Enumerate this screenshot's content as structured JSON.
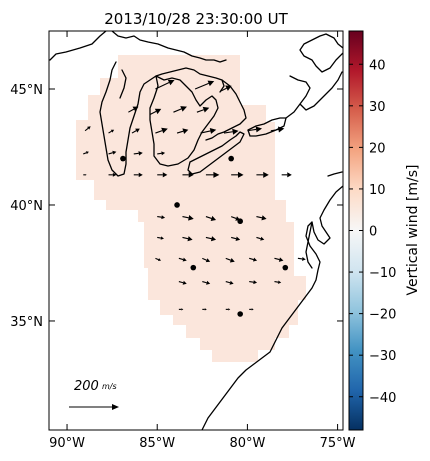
{
  "title": "2013/10/28 23:30:00 UT",
  "map": {
    "lon_range": [
      -91,
      -74.7
    ],
    "lat_range": [
      30.3,
      47.5
    ],
    "lon_ticks": [
      {
        "value": -90,
        "label": "90°W"
      },
      {
        "value": -85,
        "label": "85°W"
      },
      {
        "value": -80,
        "label": "80°W"
      },
      {
        "value": -75,
        "label": "75°W"
      }
    ],
    "lat_ticks": [
      {
        "value": 45,
        "label": "45°N"
      },
      {
        "value": 40,
        "label": "40°N"
      },
      {
        "value": 35,
        "label": "35°N"
      }
    ],
    "field_color": "#fbe6dc",
    "reference_vector": {
      "label_num": "200",
      "label_unit": "m/s",
      "magnitude": 200
    }
  },
  "colorbar": {
    "label": "Vertical wind [m/s]",
    "range": [
      -48,
      48
    ],
    "tick_values": [
      40,
      30,
      20,
      10,
      0,
      -10,
      -20,
      -30,
      -40
    ],
    "tick_labels": [
      "40",
      "30",
      "20",
      "10",
      "0",
      "−10",
      "−20",
      "−30",
      "−40"
    ],
    "color_stops": [
      "#053061",
      "#2166ac",
      "#4393c3",
      "#92c5de",
      "#d1e5f0",
      "#f7f7f7",
      "#fddbc7",
      "#f4a582",
      "#d6604d",
      "#b2182b",
      "#67001f"
    ]
  },
  "chart_data": {
    "type": "quiver",
    "title": "2013/10/28 23:30:00 UT",
    "xlabel": "",
    "ylabel": "",
    "colorbar_label": "Vertical wind [m/s]",
    "stations": [
      {
        "lon": -86.9,
        "lat": 42.0
      },
      {
        "lon": -80.9,
        "lat": 42.0
      },
      {
        "lon": -83.9,
        "lat": 40.0
      },
      {
        "lon": -80.4,
        "lat": 39.3
      },
      {
        "lon": -83.0,
        "lat": 37.3
      },
      {
        "lon": -77.9,
        "lat": 37.3
      },
      {
        "lon": -80.4,
        "lat": 35.3
      }
    ],
    "vectors": [
      {
        "lon": -85.1,
        "lat": 45.0,
        "u": 85,
        "v": 40
      },
      {
        "lon": -82.9,
        "lat": 45.0,
        "u": 85,
        "v": 35
      },
      {
        "lon": -81.5,
        "lat": 44.9,
        "u": 50,
        "v": 25
      },
      {
        "lon": -86.6,
        "lat": 44.0,
        "u": 45,
        "v": 25
      },
      {
        "lon": -85.4,
        "lat": 43.9,
        "u": 50,
        "v": 25
      },
      {
        "lon": -84.1,
        "lat": 44.0,
        "u": 60,
        "v": 25
      },
      {
        "lon": -82.8,
        "lat": 44.0,
        "u": 55,
        "v": 20
      },
      {
        "lon": -89.0,
        "lat": 43.2,
        "u": 25,
        "v": 20
      },
      {
        "lon": -87.7,
        "lat": 43.1,
        "u": 25,
        "v": 15
      },
      {
        "lon": -86.4,
        "lat": 43.1,
        "u": 35,
        "v": 20
      },
      {
        "lon": -85.1,
        "lat": 43.1,
        "u": 55,
        "v": 20
      },
      {
        "lon": -83.9,
        "lat": 43.1,
        "u": 50,
        "v": 15
      },
      {
        "lon": -82.6,
        "lat": 43.1,
        "u": 70,
        "v": 15
      },
      {
        "lon": -81.3,
        "lat": 43.1,
        "u": 65,
        "v": 10
      },
      {
        "lon": -80.0,
        "lat": 43.2,
        "u": 65,
        "v": 10
      },
      {
        "lon": -78.7,
        "lat": 43.2,
        "u": 60,
        "v": 10
      },
      {
        "lon": -89.1,
        "lat": 42.2,
        "u": 25,
        "v": 10
      },
      {
        "lon": -87.7,
        "lat": 42.2,
        "u": 35,
        "v": 10
      },
      {
        "lon": -86.3,
        "lat": 42.2,
        "u": 40,
        "v": 5
      },
      {
        "lon": -85.0,
        "lat": 42.2,
        "u": 35,
        "v": 5
      },
      {
        "lon": -89.1,
        "lat": 41.3,
        "u": 15,
        "v": 0
      },
      {
        "lon": -87.7,
        "lat": 41.3,
        "u": 35,
        "v": 0
      },
      {
        "lon": -86.3,
        "lat": 41.3,
        "u": 40,
        "v": 0
      },
      {
        "lon": -85.0,
        "lat": 41.3,
        "u": 45,
        "v": 0
      },
      {
        "lon": -83.6,
        "lat": 41.3,
        "u": 50,
        "v": 0
      },
      {
        "lon": -82.3,
        "lat": 41.3,
        "u": 60,
        "v": 0
      },
      {
        "lon": -80.9,
        "lat": 41.3,
        "u": 55,
        "v": 0
      },
      {
        "lon": -79.5,
        "lat": 41.3,
        "u": 55,
        "v": 0
      },
      {
        "lon": -78.1,
        "lat": 41.3,
        "u": 45,
        "v": 0
      },
      {
        "lon": -85.0,
        "lat": 39.5,
        "u": 35,
        "v": -5
      },
      {
        "lon": -83.6,
        "lat": 39.5,
        "u": 50,
        "v": -10
      },
      {
        "lon": -82.3,
        "lat": 39.5,
        "u": 45,
        "v": -15
      },
      {
        "lon": -80.9,
        "lat": 39.5,
        "u": 40,
        "v": -15
      },
      {
        "lon": -79.5,
        "lat": 39.5,
        "u": 45,
        "v": -10
      },
      {
        "lon": -85.0,
        "lat": 38.6,
        "u": 30,
        "v": -5
      },
      {
        "lon": -83.6,
        "lat": 38.6,
        "u": 45,
        "v": -10
      },
      {
        "lon": -82.3,
        "lat": 38.6,
        "u": 45,
        "v": -10
      },
      {
        "lon": -80.9,
        "lat": 38.6,
        "u": 40,
        "v": -10
      },
      {
        "lon": -79.5,
        "lat": 38.6,
        "u": 35,
        "v": -10
      },
      {
        "lon": -85.1,
        "lat": 37.7,
        "u": 25,
        "v": -10
      },
      {
        "lon": -83.8,
        "lat": 37.7,
        "u": 35,
        "v": -10
      },
      {
        "lon": -82.5,
        "lat": 37.7,
        "u": 35,
        "v": -15
      },
      {
        "lon": -81.2,
        "lat": 37.7,
        "u": 40,
        "v": -15
      },
      {
        "lon": -79.9,
        "lat": 37.7,
        "u": 35,
        "v": -10
      },
      {
        "lon": -78.5,
        "lat": 37.7,
        "u": 40,
        "v": -10
      },
      {
        "lon": -77.2,
        "lat": 37.7,
        "u": 35,
        "v": -5
      },
      {
        "lon": -83.8,
        "lat": 36.7,
        "u": 35,
        "v": -10
      },
      {
        "lon": -82.5,
        "lat": 36.7,
        "u": 35,
        "v": -10
      },
      {
        "lon": -81.2,
        "lat": 36.7,
        "u": 35,
        "v": -10
      },
      {
        "lon": -79.9,
        "lat": 36.7,
        "u": 35,
        "v": -5
      },
      {
        "lon": -78.5,
        "lat": 36.7,
        "u": 30,
        "v": -5
      },
      {
        "lon": -83.8,
        "lat": 35.5,
        "u": 20,
        "v": 0
      },
      {
        "lon": -82.5,
        "lat": 35.5,
        "u": 20,
        "v": 0
      },
      {
        "lon": -81.2,
        "lat": 35.5,
        "u": 20,
        "v": 0
      },
      {
        "lon": -79.9,
        "lat": 35.5,
        "u": 20,
        "v": 0
      }
    ]
  }
}
